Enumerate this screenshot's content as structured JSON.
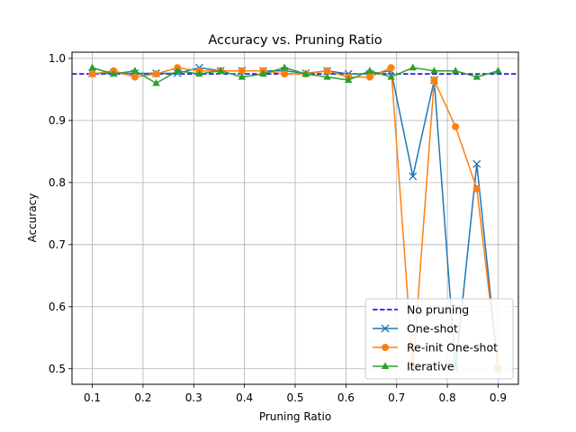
{
  "chart_data": {
    "type": "line",
    "title": "Accuracy vs. Pruning Ratio",
    "xlabel": "Pruning Ratio",
    "ylabel": "Accuracy",
    "xlim": [
      0.06,
      0.94
    ],
    "ylim": [
      0.475,
      1.01
    ],
    "xticks": [
      0.1,
      0.2,
      0.3,
      0.4,
      0.5,
      0.6,
      0.7,
      0.8,
      0.9
    ],
    "yticks": [
      0.5,
      0.6,
      0.7,
      0.8,
      0.9,
      1.0
    ],
    "xtick_labels": [
      "0.1",
      "0.2",
      "0.3",
      "0.4",
      "0.5",
      "0.6",
      "0.7",
      "0.8",
      "0.9"
    ],
    "ytick_labels": [
      "0.5",
      "0.6",
      "0.7",
      "0.8",
      "0.9",
      "1.0"
    ],
    "grid": true,
    "legend_position": "bottom-right",
    "reference_line": {
      "name": "No pruning",
      "value": 0.975,
      "color": "#0000cc",
      "style": "dashed"
    },
    "x": [
      0.1,
      0.142,
      0.184,
      0.226,
      0.268,
      0.311,
      0.353,
      0.395,
      0.437,
      0.479,
      0.521,
      0.563,
      0.605,
      0.647,
      0.689,
      0.732,
      0.774,
      0.816,
      0.858,
      0.9
    ],
    "series": [
      {
        "name": "One-shot",
        "marker": "x",
        "color": "#1f77b4",
        "values": [
          0.976,
          0.976,
          0.976,
          0.976,
          0.976,
          0.985,
          0.98,
          0.98,
          0.98,
          0.98,
          0.976,
          0.98,
          0.975,
          0.975,
          0.98,
          0.81,
          0.965,
          0.5,
          0.83,
          0.5
        ]
      },
      {
        "name": "Re-init One-shot",
        "marker": "o",
        "color": "#ff7f0e",
        "values": [
          0.975,
          0.98,
          0.97,
          0.975,
          0.985,
          0.98,
          0.98,
          0.98,
          0.98,
          0.975,
          0.975,
          0.98,
          0.97,
          0.97,
          0.985,
          0.5,
          0.965,
          0.89,
          0.79,
          0.5
        ]
      },
      {
        "name": "Iterative",
        "marker": "^",
        "color": "#2ca02c",
        "values": [
          0.985,
          0.975,
          0.98,
          0.96,
          0.98,
          0.975,
          0.98,
          0.97,
          0.975,
          0.985,
          0.975,
          0.97,
          0.965,
          0.98,
          0.97,
          0.985,
          0.98,
          0.98,
          0.97,
          0.98
        ]
      }
    ]
  }
}
